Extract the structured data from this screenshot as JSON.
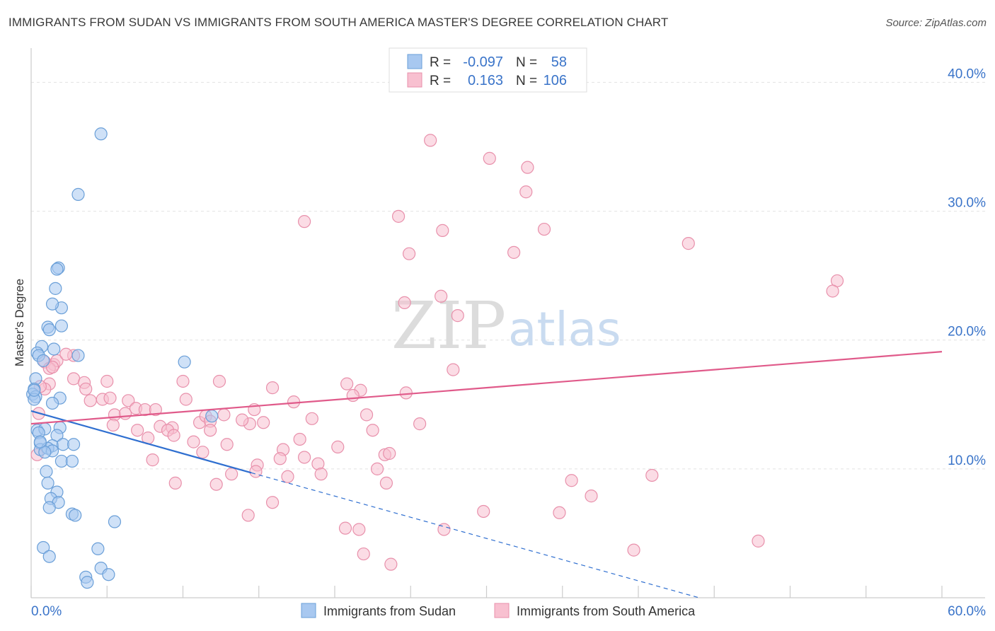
{
  "title": "IMMIGRANTS FROM SUDAN VS IMMIGRANTS FROM SOUTH AMERICA MASTER'S DEGREE CORRELATION CHART",
  "source": "Source: ZipAtlas.com",
  "watermark": {
    "zip": "ZIP",
    "atlas": "atlas"
  },
  "colors": {
    "sudan_fill": "#a8c8f0",
    "sudan_stroke": "#6a9fd8",
    "sudan_line": "#2f6fd0",
    "sa_fill": "#f8c0d0",
    "sa_stroke": "#e890ab",
    "sa_line": "#e05a8a",
    "grid": "#e2e2e2",
    "tick_text": "#3a74c9"
  },
  "stats": {
    "r_label": "R =",
    "n_label": "N =",
    "sudan": {
      "r": "-0.097",
      "n": "58"
    },
    "south_america": {
      "r": "0.163",
      "n": "106"
    }
  },
  "legend": {
    "sudan": "Immigrants from Sudan",
    "south_america": "Immigrants from South America"
  },
  "chart_data": {
    "type": "scatter",
    "title": "IMMIGRANTS FROM SUDAN VS IMMIGRANTS FROM SOUTH AMERICA MASTER'S DEGREE CORRELATION CHART",
    "xlabel": "",
    "ylabel": "Master's Degree",
    "xlim": [
      0,
      60
    ],
    "ylim": [
      0,
      42
    ],
    "x_tick_labels": [
      "0.0%",
      "60.0%"
    ],
    "y_ticks": [
      10,
      20,
      30,
      40
    ],
    "y_tick_labels": [
      "10.0%",
      "20.0%",
      "30.0%",
      "40.0%"
    ],
    "grid": true,
    "legend_position": "bottom",
    "series": [
      {
        "name": "Immigrants from Sudan",
        "trend": {
          "x0": 0,
          "y0": 14.5,
          "x1": 14.5,
          "y1": 9.7,
          "dashed_to_x": 44,
          "dashed_to_y": 0
        },
        "points": [
          [
            4.6,
            36.0
          ],
          [
            3.1,
            31.3
          ],
          [
            1.8,
            25.6
          ],
          [
            1.7,
            25.5
          ],
          [
            1.6,
            24.0
          ],
          [
            2.0,
            22.5
          ],
          [
            1.4,
            22.8
          ],
          [
            2.0,
            21.1
          ],
          [
            1.1,
            21.0
          ],
          [
            1.2,
            20.8
          ],
          [
            0.7,
            19.5
          ],
          [
            1.5,
            19.3
          ],
          [
            0.4,
            19.0
          ],
          [
            0.5,
            18.8
          ],
          [
            0.8,
            18.4
          ],
          [
            3.1,
            18.8
          ],
          [
            10.1,
            18.3
          ],
          [
            0.3,
            17.0
          ],
          [
            0.2,
            16.2
          ],
          [
            0.1,
            15.8
          ],
          [
            0.3,
            15.6
          ],
          [
            0.2,
            15.4
          ],
          [
            1.9,
            15.5
          ],
          [
            1.4,
            15.1
          ],
          [
            11.9,
            14.1
          ],
          [
            0.4,
            13.0
          ],
          [
            0.9,
            13.1
          ],
          [
            1.9,
            13.2
          ],
          [
            1.7,
            12.6
          ],
          [
            0.5,
            12.8
          ],
          [
            0.6,
            12.0
          ],
          [
            1.4,
            11.8
          ],
          [
            2.1,
            11.9
          ],
          [
            2.8,
            11.9
          ],
          [
            0.6,
            11.5
          ],
          [
            1.1,
            11.6
          ],
          [
            1.4,
            11.4
          ],
          [
            0.9,
            11.3
          ],
          [
            2.0,
            10.6
          ],
          [
            2.7,
            10.6
          ],
          [
            1.0,
            9.8
          ],
          [
            1.1,
            8.9
          ],
          [
            1.7,
            8.2
          ],
          [
            1.3,
            7.7
          ],
          [
            1.8,
            7.4
          ],
          [
            1.2,
            7.0
          ],
          [
            2.7,
            6.5
          ],
          [
            2.9,
            6.4
          ],
          [
            5.5,
            5.9
          ],
          [
            0.8,
            3.9
          ],
          [
            4.4,
            3.8
          ],
          [
            1.2,
            3.2
          ],
          [
            4.6,
            2.3
          ],
          [
            3.6,
            1.6
          ],
          [
            5.1,
            1.8
          ],
          [
            3.7,
            1.2
          ],
          [
            0.2,
            16.1
          ],
          [
            0.6,
            12.1
          ]
        ]
      },
      {
        "name": "Immigrants from South America",
        "trend": {
          "x0": 0,
          "y0": 13.5,
          "x1": 60,
          "y1": 19.1
        },
        "points": [
          [
            26.3,
            35.5
          ],
          [
            30.2,
            34.1
          ],
          [
            32.7,
            33.4
          ],
          [
            32.6,
            31.5
          ],
          [
            18.0,
            29.2
          ],
          [
            24.2,
            29.6
          ],
          [
            27.1,
            28.5
          ],
          [
            33.8,
            28.6
          ],
          [
            43.3,
            27.5
          ],
          [
            24.9,
            26.7
          ],
          [
            31.8,
            26.8
          ],
          [
            53.1,
            24.6
          ],
          [
            52.8,
            23.8
          ],
          [
            27.0,
            23.4
          ],
          [
            24.6,
            22.9
          ],
          [
            28.1,
            21.9
          ],
          [
            2.8,
            18.8
          ],
          [
            1.5,
            18.1
          ],
          [
            1.7,
            18.4
          ],
          [
            0.9,
            18.3
          ],
          [
            1.2,
            17.8
          ],
          [
            27.8,
            17.7
          ],
          [
            2.8,
            17.0
          ],
          [
            3.5,
            16.7
          ],
          [
            5.0,
            16.8
          ],
          [
            10.0,
            16.8
          ],
          [
            12.4,
            16.8
          ],
          [
            15.9,
            16.3
          ],
          [
            20.8,
            16.6
          ],
          [
            21.7,
            16.1
          ],
          [
            24.7,
            15.9
          ],
          [
            1.2,
            16.6
          ],
          [
            0.9,
            16.2
          ],
          [
            3.6,
            16.2
          ],
          [
            4.7,
            15.4
          ],
          [
            5.2,
            15.5
          ],
          [
            6.4,
            15.3
          ],
          [
            10.2,
            15.4
          ],
          [
            3.9,
            15.3
          ],
          [
            17.3,
            15.2
          ],
          [
            21.2,
            15.7
          ],
          [
            5.5,
            14.2
          ],
          [
            6.9,
            14.7
          ],
          [
            7.5,
            14.6
          ],
          [
            8.2,
            14.6
          ],
          [
            6.2,
            14.3
          ],
          [
            14.7,
            14.6
          ],
          [
            12.7,
            14.2
          ],
          [
            22.1,
            14.2
          ],
          [
            11.1,
            13.6
          ],
          [
            11.5,
            14.1
          ],
          [
            11.8,
            13.7
          ],
          [
            14.4,
            13.5
          ],
          [
            13.9,
            13.8
          ],
          [
            18.5,
            13.9
          ],
          [
            15.3,
            13.6
          ],
          [
            25.6,
            13.5
          ],
          [
            5.4,
            13.4
          ],
          [
            7.0,
            13.0
          ],
          [
            8.5,
            13.3
          ],
          [
            9.3,
            13.2
          ],
          [
            9.0,
            13.0
          ],
          [
            11.8,
            13.0
          ],
          [
            22.5,
            13.0
          ],
          [
            7.7,
            12.4
          ],
          [
            9.4,
            12.6
          ],
          [
            10.7,
            12.1
          ],
          [
            12.9,
            11.9
          ],
          [
            17.7,
            12.3
          ],
          [
            20.2,
            11.7
          ],
          [
            23.3,
            11.1
          ],
          [
            16.6,
            11.5
          ],
          [
            11.3,
            11.3
          ],
          [
            16.4,
            10.8
          ],
          [
            18.0,
            10.9
          ],
          [
            23.6,
            11.2
          ],
          [
            8.0,
            10.7
          ],
          [
            14.9,
            10.3
          ],
          [
            18.9,
            10.4
          ],
          [
            22.8,
            10.0
          ],
          [
            14.8,
            9.8
          ],
          [
            13.2,
            9.6
          ],
          [
            16.9,
            9.4
          ],
          [
            19.1,
            9.6
          ],
          [
            9.5,
            8.9
          ],
          [
            12.2,
            8.8
          ],
          [
            23.4,
            8.9
          ],
          [
            35.6,
            9.1
          ],
          [
            40.9,
            9.5
          ],
          [
            36.9,
            7.9
          ],
          [
            15.9,
            7.4
          ],
          [
            14.3,
            6.4
          ],
          [
            29.8,
            6.7
          ],
          [
            34.8,
            6.6
          ],
          [
            20.7,
            5.4
          ],
          [
            21.6,
            5.3
          ],
          [
            27.2,
            5.3
          ],
          [
            21.9,
            3.4
          ],
          [
            39.7,
            3.7
          ],
          [
            47.9,
            4.4
          ],
          [
            23.7,
            2.6
          ],
          [
            1.4,
            17.9
          ],
          [
            0.5,
            14.3
          ],
          [
            0.4,
            11.1
          ],
          [
            0.6,
            16.4
          ],
          [
            2.3,
            18.9
          ]
        ]
      }
    ]
  }
}
